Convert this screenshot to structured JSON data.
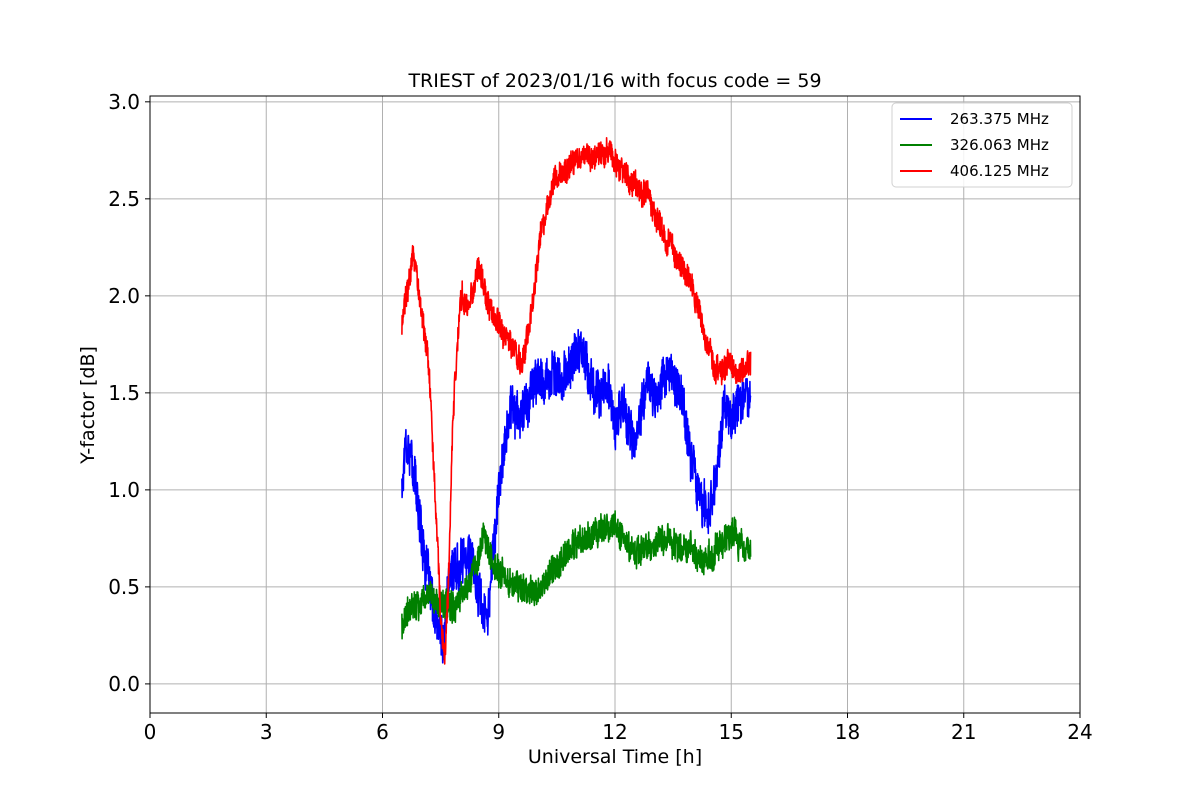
{
  "chart_data": {
    "type": "line",
    "title": "TRIEST of 2023/01/16 with focus code = 59",
    "xlabel": "Universal Time [h]",
    "ylabel": "Y-factor [dB]",
    "xlim": [
      0,
      24
    ],
    "ylim": [
      -0.15,
      3.03
    ],
    "xticks": [
      0,
      3,
      6,
      9,
      12,
      15,
      18,
      21,
      24
    ],
    "xtick_labels": [
      "0",
      "3",
      "6",
      "9",
      "12",
      "15",
      "18",
      "21",
      "24"
    ],
    "yticks": [
      0.0,
      0.5,
      1.0,
      1.5,
      2.0,
      2.5,
      3.0
    ],
    "ytick_labels": [
      "0.0",
      "0.5",
      "1.0",
      "1.5",
      "2.0",
      "2.5",
      "3.0"
    ],
    "grid": true,
    "legend_position": "top-right",
    "series": [
      {
        "name": "263.375 MHz",
        "color": "#0000ff",
        "amplitude": 0.14,
        "x": [
          6.5,
          6.6,
          6.8,
          7.0,
          7.2,
          7.4,
          7.5,
          7.6,
          7.7,
          8.0,
          8.2,
          8.5,
          8.7,
          9.0,
          9.3,
          9.6,
          9.8,
          10.0,
          10.3,
          10.6,
          11.0,
          11.2,
          11.3,
          11.5,
          11.8,
          12.0,
          12.2,
          12.5,
          12.8,
          13.0,
          13.3,
          13.6,
          13.8,
          14.0,
          14.2,
          14.4,
          14.6,
          14.8,
          15.0,
          15.2,
          15.5
        ],
        "y": [
          1.0,
          1.3,
          1.1,
          0.8,
          0.5,
          0.3,
          0.25,
          0.2,
          0.55,
          0.6,
          0.7,
          0.45,
          0.35,
          1.0,
          1.45,
          1.35,
          1.5,
          1.55,
          1.6,
          1.55,
          1.7,
          1.75,
          1.6,
          1.5,
          1.55,
          1.3,
          1.45,
          1.2,
          1.55,
          1.5,
          1.6,
          1.55,
          1.4,
          1.15,
          0.95,
          0.9,
          1.05,
          1.45,
          1.35,
          1.45,
          1.5
        ]
      },
      {
        "name": "326.063 MHz",
        "color": "#008000",
        "amplitude": 0.09,
        "x": [
          6.5,
          6.8,
          7.0,
          7.3,
          7.6,
          8.0,
          8.3,
          8.6,
          8.9,
          9.2,
          9.5,
          9.8,
          10.0,
          10.3,
          10.6,
          11.0,
          11.3,
          11.6,
          12.0,
          12.3,
          12.6,
          13.0,
          13.3,
          13.6,
          14.0,
          14.3,
          14.6,
          15.0,
          15.3,
          15.5
        ],
        "y": [
          0.3,
          0.4,
          0.45,
          0.45,
          0.4,
          0.45,
          0.55,
          0.75,
          0.6,
          0.55,
          0.5,
          0.5,
          0.45,
          0.55,
          0.65,
          0.72,
          0.75,
          0.78,
          0.82,
          0.72,
          0.68,
          0.7,
          0.74,
          0.72,
          0.7,
          0.62,
          0.68,
          0.78,
          0.7,
          0.68
        ]
      },
      {
        "name": "406.125 MHz",
        "color": "#ff0000",
        "amplitude": 0.08,
        "x": [
          6.5,
          6.6,
          6.8,
          7.0,
          7.2,
          7.3,
          7.4,
          7.5,
          7.6,
          7.7,
          7.8,
          8.0,
          8.2,
          8.5,
          8.7,
          9.0,
          9.3,
          9.6,
          9.8,
          10.0,
          10.3,
          10.6,
          11.0,
          11.5,
          11.8,
          12.0,
          12.3,
          12.6,
          13.0,
          13.3,
          13.6,
          14.0,
          14.3,
          14.6,
          15.0,
          15.3,
          15.5
        ],
        "y": [
          1.85,
          2.0,
          2.2,
          1.95,
          1.6,
          1.2,
          0.85,
          0.35,
          0.1,
          0.5,
          1.3,
          2.0,
          1.95,
          2.15,
          1.95,
          1.85,
          1.75,
          1.65,
          1.85,
          2.2,
          2.55,
          2.65,
          2.7,
          2.72,
          2.74,
          2.7,
          2.6,
          2.58,
          2.45,
          2.3,
          2.2,
          2.05,
          1.8,
          1.6,
          1.65,
          1.6,
          1.65
        ]
      }
    ]
  }
}
